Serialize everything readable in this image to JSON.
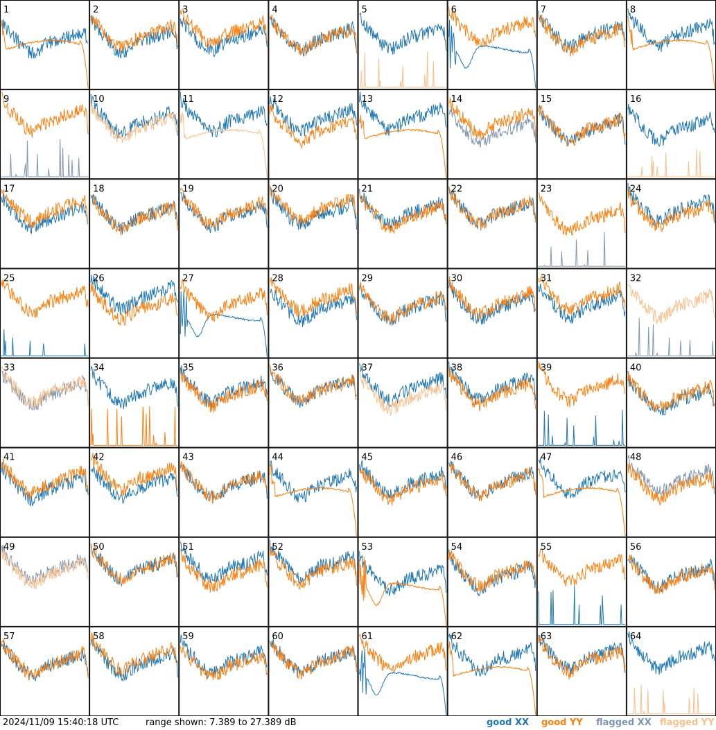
{
  "chart_data": {
    "type": "line",
    "layout": "small-multiples grid, 8 x 8 panels",
    "timestamp": "2024/11/09 15:40:18 UTC",
    "range_text": "range shown: 7.389 to 27.389 dB",
    "ylim": [
      7.389,
      27.389
    ],
    "legend": [
      {
        "label": "good XX",
        "color": "#1f77b4"
      },
      {
        "label": "good YY",
        "color": "#ff7f0e"
      },
      {
        "label": "flagged XX",
        "color": "#7f96b0"
      },
      {
        "label": "flagged YY",
        "color": "#f9c08e"
      }
    ],
    "colors": {
      "good_xx": "#1f77b4",
      "good_yy": "#ff7f0e",
      "flagged_xx": "#7f96b0",
      "flagged_yy": "#f9c08e"
    },
    "panels": [
      {
        "id": "1",
        "xx": "good",
        "yy": "good",
        "xx_kind": "normal",
        "yy_kind": "fall"
      },
      {
        "id": "2",
        "xx": "good",
        "yy": "good",
        "xx_kind": "normal",
        "yy_kind": "normal"
      },
      {
        "id": "3",
        "xx": "good",
        "yy": "good",
        "xx_kind": "normal",
        "yy_kind": "normal"
      },
      {
        "id": "4",
        "xx": "good",
        "yy": "good",
        "xx_kind": "normal",
        "yy_kind": "normal"
      },
      {
        "id": "5",
        "xx": "good",
        "yy": "flagged",
        "xx_kind": "normal",
        "yy_kind": "spikes"
      },
      {
        "id": "6",
        "xx": "good",
        "yy": "good",
        "xx_kind": "dip",
        "yy_kind": "normal"
      },
      {
        "id": "7",
        "xx": "good",
        "yy": "good",
        "xx_kind": "normal",
        "yy_kind": "normal"
      },
      {
        "id": "8",
        "xx": "good",
        "yy": "good",
        "xx_kind": "normal",
        "yy_kind": "fall"
      },
      {
        "id": "9",
        "xx": "flagged",
        "yy": "good",
        "xx_kind": "spikes",
        "yy_kind": "normal"
      },
      {
        "id": "10",
        "xx": "good",
        "yy": "flagged",
        "xx_kind": "normal",
        "yy_kind": "normal"
      },
      {
        "id": "11",
        "xx": "good",
        "yy": "flagged",
        "xx_kind": "normal",
        "yy_kind": "fall"
      },
      {
        "id": "12",
        "xx": "good",
        "yy": "good",
        "xx_kind": "normal",
        "yy_kind": "normal"
      },
      {
        "id": "13",
        "xx": "good",
        "yy": "good",
        "xx_kind": "normal",
        "yy_kind": "fall"
      },
      {
        "id": "14",
        "xx": "flagged",
        "yy": "good",
        "xx_kind": "normal",
        "yy_kind": "normal"
      },
      {
        "id": "15",
        "xx": "good",
        "yy": "good",
        "xx_kind": "normal",
        "yy_kind": "normal"
      },
      {
        "id": "16",
        "xx": "good",
        "yy": "flagged",
        "xx_kind": "normal",
        "yy_kind": "spikes"
      },
      {
        "id": "17",
        "xx": "good",
        "yy": "good",
        "xx_kind": "normal",
        "yy_kind": "normal"
      },
      {
        "id": "18",
        "xx": "good",
        "yy": "good",
        "xx_kind": "normal",
        "yy_kind": "normal"
      },
      {
        "id": "19",
        "xx": "good",
        "yy": "good",
        "xx_kind": "normal",
        "yy_kind": "normal"
      },
      {
        "id": "20",
        "xx": "good",
        "yy": "good",
        "xx_kind": "normal",
        "yy_kind": "normal"
      },
      {
        "id": "21",
        "xx": "good",
        "yy": "good",
        "xx_kind": "normal",
        "yy_kind": "normal"
      },
      {
        "id": "22",
        "xx": "good",
        "yy": "good",
        "xx_kind": "normal",
        "yy_kind": "normal"
      },
      {
        "id": "23",
        "xx": "flagged",
        "yy": "good",
        "xx_kind": "spikes",
        "yy_kind": "normal"
      },
      {
        "id": "24",
        "xx": "good",
        "yy": "good",
        "xx_kind": "normal",
        "yy_kind": "normal"
      },
      {
        "id": "25",
        "xx": "good",
        "yy": "good",
        "xx_kind": "spikes",
        "yy_kind": "normal"
      },
      {
        "id": "26",
        "xx": "good",
        "yy": "good",
        "xx_kind": "normal",
        "yy_kind": "normal"
      },
      {
        "id": "27",
        "xx": "good",
        "yy": "good",
        "xx_kind": "dip",
        "yy_kind": "normal"
      },
      {
        "id": "28",
        "xx": "good",
        "yy": "good",
        "xx_kind": "normal",
        "yy_kind": "normal"
      },
      {
        "id": "29",
        "xx": "good",
        "yy": "good",
        "xx_kind": "normal",
        "yy_kind": "normal"
      },
      {
        "id": "30",
        "xx": "good",
        "yy": "good",
        "xx_kind": "normal",
        "yy_kind": "normal"
      },
      {
        "id": "31",
        "xx": "good",
        "yy": "good",
        "xx_kind": "normal",
        "yy_kind": "normal"
      },
      {
        "id": "32",
        "xx": "flagged",
        "yy": "flagged",
        "xx_kind": "spikes",
        "yy_kind": "normal"
      },
      {
        "id": "33",
        "xx": "flagged",
        "yy": "flagged",
        "xx_kind": "normal",
        "yy_kind": "normal"
      },
      {
        "id": "34",
        "xx": "good",
        "yy": "good",
        "xx_kind": "normal",
        "yy_kind": "spikes"
      },
      {
        "id": "35",
        "xx": "good",
        "yy": "good",
        "xx_kind": "normal",
        "yy_kind": "normal"
      },
      {
        "id": "36",
        "xx": "good",
        "yy": "good",
        "xx_kind": "normal",
        "yy_kind": "normal"
      },
      {
        "id": "37",
        "xx": "good",
        "yy": "flagged",
        "xx_kind": "normal",
        "yy_kind": "normal"
      },
      {
        "id": "38",
        "xx": "good",
        "yy": "good",
        "xx_kind": "normal",
        "yy_kind": "normal"
      },
      {
        "id": "39",
        "xx": "good",
        "yy": "good",
        "xx_kind": "spikes",
        "yy_kind": "normal"
      },
      {
        "id": "40",
        "xx": "good",
        "yy": "good",
        "xx_kind": "normal",
        "yy_kind": "normal"
      },
      {
        "id": "41",
        "xx": "good",
        "yy": "good",
        "xx_kind": "normal",
        "yy_kind": "normal"
      },
      {
        "id": "42",
        "xx": "good",
        "yy": "good",
        "xx_kind": "normal",
        "yy_kind": "normal"
      },
      {
        "id": "43",
        "xx": "good",
        "yy": "good",
        "xx_kind": "normal",
        "yy_kind": "normal"
      },
      {
        "id": "44",
        "xx": "good",
        "yy": "good",
        "xx_kind": "normal",
        "yy_kind": "fall"
      },
      {
        "id": "45",
        "xx": "good",
        "yy": "good",
        "xx_kind": "normal",
        "yy_kind": "normal"
      },
      {
        "id": "46",
        "xx": "good",
        "yy": "good",
        "xx_kind": "normal",
        "yy_kind": "normal"
      },
      {
        "id": "47",
        "xx": "good",
        "yy": "good",
        "xx_kind": "normal",
        "yy_kind": "fall"
      },
      {
        "id": "48",
        "xx": "flagged",
        "yy": "good",
        "xx_kind": "normal",
        "yy_kind": "normal"
      },
      {
        "id": "49",
        "xx": "flagged",
        "yy": "flagged",
        "xx_kind": "normal",
        "yy_kind": "normal"
      },
      {
        "id": "50",
        "xx": "good",
        "yy": "good",
        "xx_kind": "normal",
        "yy_kind": "normal"
      },
      {
        "id": "51",
        "xx": "good",
        "yy": "good",
        "xx_kind": "normal",
        "yy_kind": "normal"
      },
      {
        "id": "52",
        "xx": "good",
        "yy": "good",
        "xx_kind": "normal",
        "yy_kind": "normal"
      },
      {
        "id": "53",
        "xx": "good",
        "yy": "good",
        "xx_kind": "normal",
        "yy_kind": "dip"
      },
      {
        "id": "54",
        "xx": "good",
        "yy": "good",
        "xx_kind": "normal",
        "yy_kind": "normal"
      },
      {
        "id": "55",
        "xx": "good",
        "yy": "good",
        "xx_kind": "spikes",
        "yy_kind": "normal"
      },
      {
        "id": "56",
        "xx": "good",
        "yy": "good",
        "xx_kind": "normal",
        "yy_kind": "normal"
      },
      {
        "id": "57",
        "xx": "good",
        "yy": "good",
        "xx_kind": "normal",
        "yy_kind": "normal"
      },
      {
        "id": "58",
        "xx": "good",
        "yy": "good",
        "xx_kind": "normal",
        "yy_kind": "normal"
      },
      {
        "id": "59",
        "xx": "good",
        "yy": "good",
        "xx_kind": "normal",
        "yy_kind": "normal"
      },
      {
        "id": "60",
        "xx": "good",
        "yy": "good",
        "xx_kind": "normal",
        "yy_kind": "normal"
      },
      {
        "id": "61",
        "xx": "good",
        "yy": "good",
        "xx_kind": "dip",
        "yy_kind": "normal"
      },
      {
        "id": "62",
        "xx": "good",
        "yy": "good",
        "xx_kind": "normal",
        "yy_kind": "fall"
      },
      {
        "id": "63",
        "xx": "good",
        "yy": "good",
        "xx_kind": "normal",
        "yy_kind": "normal"
      },
      {
        "id": "64",
        "xx": "good",
        "yy": "flagged",
        "xx_kind": "normal",
        "yy_kind": "spikes"
      }
    ]
  }
}
